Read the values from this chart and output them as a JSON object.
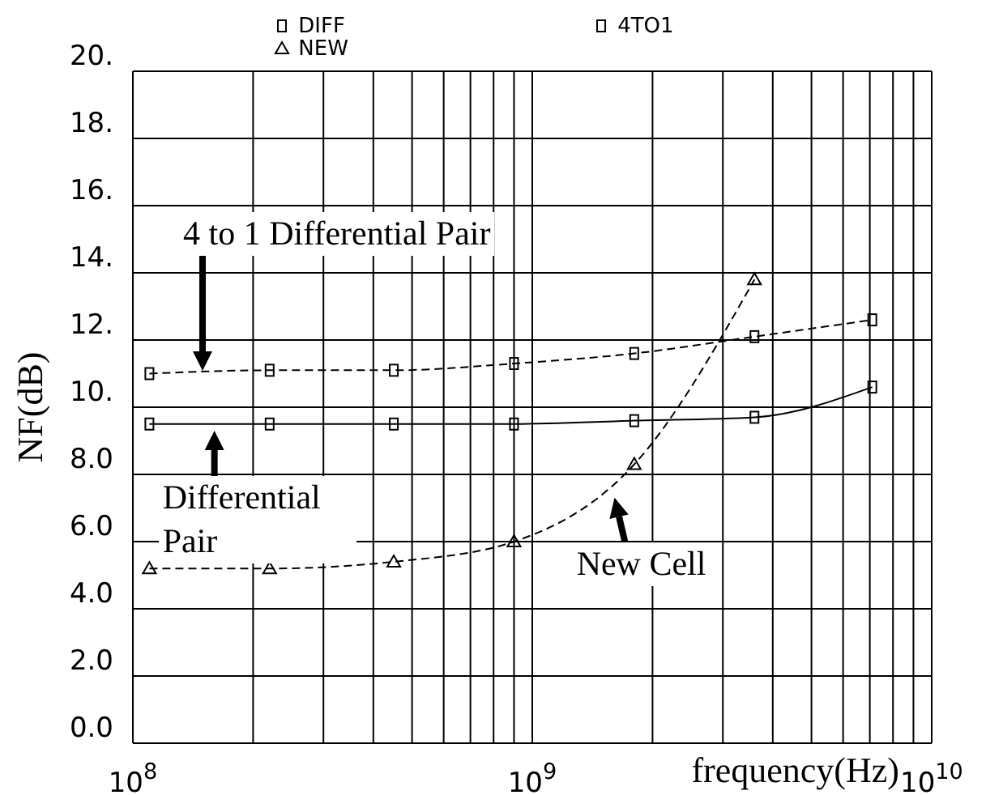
{
  "chart_data": {
    "type": "line",
    "xlabel": "frequency(Hz)",
    "ylabel": "NF(dB)",
    "x": [
      110000000.0,
      220000000.0,
      450000000.0,
      900000000.0,
      1800000000.0,
      3600000000.0,
      7100000000.0
    ],
    "series": [
      {
        "name": "DIFF",
        "color": "#000000",
        "marker": "square",
        "line_style": "solid",
        "values": [
          9.5,
          9.5,
          9.5,
          9.5,
          9.6,
          9.7,
          10.6
        ]
      },
      {
        "name": "NEW",
        "color": "#000000",
        "marker": "triangle",
        "line_style": "dashed",
        "values": [
          5.2,
          5.2,
          5.4,
          6.0,
          8.3,
          13.8,
          null
        ]
      },
      {
        "name": "4TO1",
        "color": "#000000",
        "marker": "square",
        "line_style": "dashed",
        "values": [
          11.0,
          11.1,
          11.1,
          11.3,
          11.6,
          12.1,
          12.6
        ]
      }
    ],
    "log": "x",
    "xlim": [
      100000000.0,
      10000000000.0
    ],
    "xticks": [
      {
        "value": 100000000.0,
        "label": "10$^{8}$"
      },
      {
        "value": 200000000.0,
        "label": null
      },
      {
        "value": 300000000.0,
        "label": null
      },
      {
        "value": 400000000.0,
        "label": null
      },
      {
        "value": 500000000.0,
        "label": null
      },
      {
        "value": 600000000.0,
        "label": null
      },
      {
        "value": 700000000.0,
        "label": null
      },
      {
        "value": 800000000.0,
        "label": null
      },
      {
        "value": 900000000.0,
        "label": null
      },
      {
        "value": 1000000000.0,
        "label": "10$^{9}$"
      },
      {
        "value": 2000000000.0,
        "label": null
      },
      {
        "value": 3000000000.0,
        "label": null
      },
      {
        "value": 4000000000.0,
        "label": null
      },
      {
        "value": 5000000000.0,
        "label": null
      },
      {
        "value": 6000000000.0,
        "label": null
      },
      {
        "value": 7000000000.0,
        "label": null
      },
      {
        "value": 8000000000.0,
        "label": null
      },
      {
        "value": 9000000000.0,
        "label": null
      },
      {
        "value": 10000000000.0,
        "label": "10$^{10}$"
      }
    ],
    "ylim": [
      0,
      20
    ],
    "yticks": [
      {
        "value": 0,
        "label": "0.0"
      },
      {
        "value": 2,
        "label": "2.0"
      },
      {
        "value": 4,
        "label": "4.0"
      },
      {
        "value": 6,
        "label": "6.0"
      },
      {
        "value": 8,
        "label": "8.0"
      },
      {
        "value": 10,
        "label": "10."
      },
      {
        "value": 12,
        "label": "12."
      },
      {
        "value": 14,
        "label": "14."
      },
      {
        "value": 16,
        "label": "16."
      },
      {
        "value": 18,
        "label": "18."
      },
      {
        "value": 20,
        "label": "20."
      }
    ],
    "grid": true,
    "legend": "top",
    "annotations": [
      "4 to 1 Differential Pair",
      {
        "text": "Differential Pair",
        "x": 160000000.0,
        "y": 9.4
      },
      {
        "text": "New Cell",
        "x": 1600000000.0,
        "y": 7.4
      }
    ]
  }
}
